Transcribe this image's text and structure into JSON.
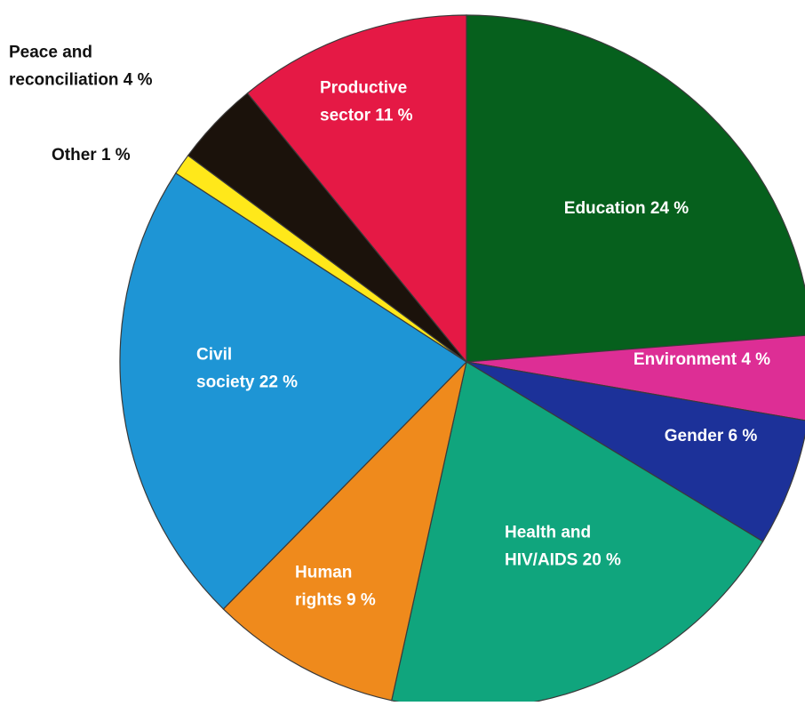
{
  "chart_data": {
    "type": "pie",
    "slices": [
      {
        "label": "Education 24 %",
        "lines": [
          "Education 24 %"
        ],
        "value": 24,
        "color": "#06601d",
        "text_color": "#ffffff",
        "label_inside": true
      },
      {
        "label": "Environment 4 %",
        "lines": [
          "Environment 4 %"
        ],
        "value": 4,
        "color": "#dd2e95",
        "text_color": "#ffffff",
        "label_inside": true
      },
      {
        "label": "Gender 6 %",
        "lines": [
          "Gender 6 %"
        ],
        "value": 6,
        "color": "#1c3199",
        "text_color": "#ffffff",
        "label_inside": true
      },
      {
        "label": "Health and HIV/AIDS 20 %",
        "lines": [
          "Health and",
          "HIV/AIDS 20 %"
        ],
        "value": 20,
        "color": "#10a57d",
        "text_color": "#ffffff",
        "label_inside": true
      },
      {
        "label": "Human rights 9 %",
        "lines": [
          "Human",
          "rights 9 %"
        ],
        "value": 9,
        "color": "#ef8a1c",
        "text_color": "#ffffff",
        "label_inside": true
      },
      {
        "label": "Civil society 22 %",
        "lines": [
          "Civil",
          "society 22 %"
        ],
        "value": 22,
        "color": "#1e95d5",
        "text_color": "#ffffff",
        "label_inside": true
      },
      {
        "label": "Other 1 %",
        "lines": [
          "Other 1 %"
        ],
        "value": 1,
        "color": "#ffe81a",
        "text_color": "#111111",
        "label_inside": false
      },
      {
        "label": "Peace and reconciliation 4 %",
        "lines": [
          "Peace and",
          "reconciliation 4 %"
        ],
        "value": 4,
        "color": "#1b120b",
        "text_color": "#111111",
        "label_inside": false
      },
      {
        "label": "Productive sector 11 %",
        "lines": [
          "Productive",
          "sector 11 %"
        ],
        "value": 11,
        "color": "#e51945",
        "text_color": "#ffffff",
        "label_inside": true
      }
    ],
    "start_angle_deg": 0,
    "direction": "clockwise",
    "legend": "none"
  }
}
